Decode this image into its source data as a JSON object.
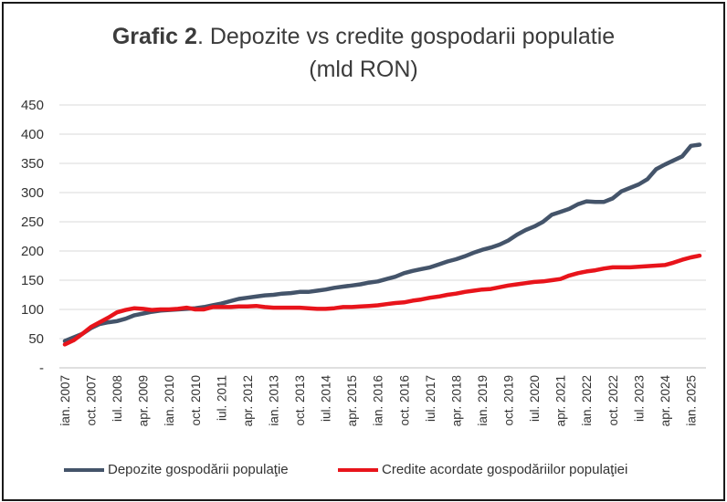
{
  "chart_data": {
    "type": "line",
    "title_bold": "Grafic 2",
    "title_rest": ". Depozite vs credite gospodarii populatie",
    "subtitle": "(mld RON)",
    "xlabel": "",
    "ylabel": "",
    "ylim": [
      0,
      450
    ],
    "y_ticks": [
      "-",
      "50",
      "100",
      "150",
      "200",
      "250",
      "300",
      "350",
      "400",
      "450"
    ],
    "x_tick_labels": [
      "ian. 2007",
      "oct. 2007",
      "iul. 2008",
      "apr. 2009",
      "ian. 2010",
      "oct. 2010",
      "iul. 2011",
      "apr. 2012",
      "ian. 2013",
      "oct. 2013",
      "iul. 2014",
      "apr. 2015",
      "ian. 2016",
      "oct. 2016",
      "iul. 2017",
      "apr. 2018",
      "ian. 2019",
      "oct. 2019",
      "iul. 2020",
      "apr. 2021",
      "ian. 2022",
      "oct. 2022",
      "iul. 2023",
      "apr. 2024",
      "ian. 2025"
    ],
    "grid": true,
    "legend_position": "bottom",
    "series": [
      {
        "name": "Depozite gospodării populaţie",
        "color": "#44546a",
        "x": [
          "2007-01",
          "2007-04",
          "2007-07",
          "2007-10",
          "2008-01",
          "2008-04",
          "2008-07",
          "2008-10",
          "2009-01",
          "2009-04",
          "2009-07",
          "2009-10",
          "2010-01",
          "2010-04",
          "2010-07",
          "2010-10",
          "2011-01",
          "2011-04",
          "2011-07",
          "2011-10",
          "2012-01",
          "2012-04",
          "2012-07",
          "2012-10",
          "2013-01",
          "2013-04",
          "2013-07",
          "2013-10",
          "2014-01",
          "2014-04",
          "2014-07",
          "2014-10",
          "2015-01",
          "2015-04",
          "2015-07",
          "2015-10",
          "2016-01",
          "2016-04",
          "2016-07",
          "2016-10",
          "2017-01",
          "2017-04",
          "2017-07",
          "2017-10",
          "2018-01",
          "2018-04",
          "2018-07",
          "2018-10",
          "2019-01",
          "2019-04",
          "2019-07",
          "2019-10",
          "2020-01",
          "2020-04",
          "2020-07",
          "2020-10",
          "2021-01",
          "2021-04",
          "2021-07",
          "2021-10",
          "2022-01",
          "2022-04",
          "2022-07",
          "2022-10",
          "2023-01",
          "2023-04",
          "2023-07",
          "2023-10",
          "2024-01",
          "2024-04",
          "2024-07",
          "2024-10",
          "2025-01",
          "2025-04"
        ],
        "values": [
          46,
          52,
          58,
          68,
          75,
          78,
          80,
          84,
          90,
          93,
          96,
          98,
          99,
          100,
          101,
          102,
          104,
          107,
          110,
          114,
          118,
          120,
          122,
          124,
          125,
          127,
          128,
          130,
          130,
          132,
          134,
          137,
          139,
          141,
          143,
          146,
          148,
          152,
          156,
          162,
          166,
          169,
          172,
          177,
          182,
          186,
          191,
          197,
          202,
          206,
          211,
          218,
          228,
          236,
          242,
          250,
          262,
          267,
          272,
          280,
          285,
          284,
          284,
          290,
          302,
          308,
          314,
          323,
          340,
          348,
          355,
          362,
          380,
          382
        ]
      },
      {
        "name": "Credite acordate gospodăriilor populaţiei",
        "color": "#e8141b",
        "x": [
          "2007-01",
          "2007-04",
          "2007-07",
          "2007-10",
          "2008-01",
          "2008-04",
          "2008-07",
          "2008-10",
          "2009-01",
          "2009-04",
          "2009-07",
          "2009-10",
          "2010-01",
          "2010-04",
          "2010-07",
          "2010-10",
          "2011-01",
          "2011-04",
          "2011-07",
          "2011-10",
          "2012-01",
          "2012-04",
          "2012-07",
          "2012-10",
          "2013-01",
          "2013-04",
          "2013-07",
          "2013-10",
          "2014-01",
          "2014-04",
          "2014-07",
          "2014-10",
          "2015-01",
          "2015-04",
          "2015-07",
          "2015-10",
          "2016-01",
          "2016-04",
          "2016-07",
          "2016-10",
          "2017-01",
          "2017-04",
          "2017-07",
          "2017-10",
          "2018-01",
          "2018-04",
          "2018-07",
          "2018-10",
          "2019-01",
          "2019-04",
          "2019-07",
          "2019-10",
          "2020-01",
          "2020-04",
          "2020-07",
          "2020-10",
          "2021-01",
          "2021-04",
          "2021-07",
          "2021-10",
          "2022-01",
          "2022-04",
          "2022-07",
          "2022-10",
          "2023-01",
          "2023-04",
          "2023-07",
          "2023-10",
          "2024-01",
          "2024-04",
          "2024-07",
          "2024-10",
          "2025-01",
          "2025-04"
        ],
        "values": [
          40,
          47,
          58,
          70,
          78,
          86,
          95,
          99,
          102,
          101,
          99,
          100,
          100,
          101,
          103,
          100,
          100,
          104,
          104,
          104,
          105,
          105,
          106,
          104,
          103,
          103,
          103,
          103,
          102,
          101,
          101,
          102,
          104,
          104,
          105,
          106,
          107,
          109,
          111,
          112,
          115,
          117,
          120,
          122,
          125,
          127,
          130,
          132,
          134,
          135,
          138,
          141,
          143,
          145,
          147,
          148,
          150,
          152,
          158,
          162,
          165,
          167,
          170,
          172,
          172,
          172,
          173,
          174,
          175,
          176,
          180,
          185,
          189,
          192
        ]
      }
    ]
  }
}
